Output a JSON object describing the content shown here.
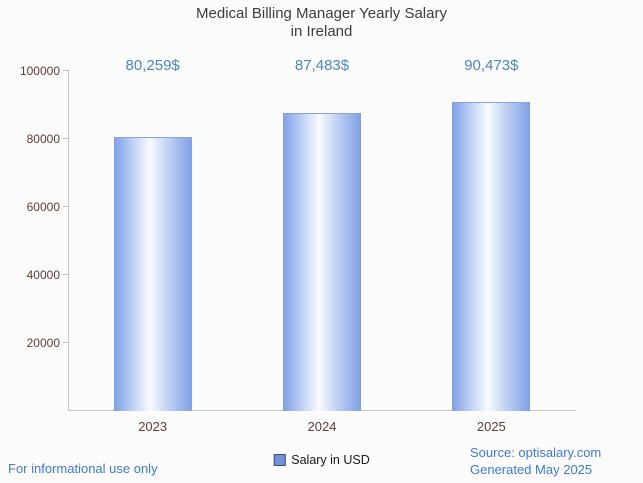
{
  "title": {
    "line1": "Medical Billing Manager Yearly Salary",
    "line2": "in Ireland"
  },
  "chart_data": {
    "type": "bar",
    "title": "Medical Billing Manager Yearly Salary in Ireland",
    "categories": [
      "2023",
      "2024",
      "2025"
    ],
    "values": [
      80259,
      87483,
      90473
    ],
    "value_labels": [
      "80,259$",
      "87,483$",
      "90,473$"
    ],
    "series": [
      {
        "name": "Salary in USD",
        "values": [
          80259,
          87483,
          90473
        ]
      }
    ],
    "xlabel": "",
    "ylabel": "",
    "ylim": [
      0,
      100000
    ],
    "yticks": [
      20000,
      40000,
      60000,
      80000,
      100000
    ],
    "grid": false,
    "legend_position": "bottom"
  },
  "legend": {
    "label": "Salary in USD"
  },
  "footer": {
    "left": "For informational use only",
    "source": "Source: optisalary.com",
    "generated": "Generated May 2025"
  },
  "colors": {
    "accent_blue": "#4a86c8",
    "link_blue": "#3e7bd6",
    "bar_blue": "#7f9fe4",
    "axis_label_brown": "#5d4037",
    "title_gray": "#3d3d3d",
    "background": "#fcfcfc"
  }
}
